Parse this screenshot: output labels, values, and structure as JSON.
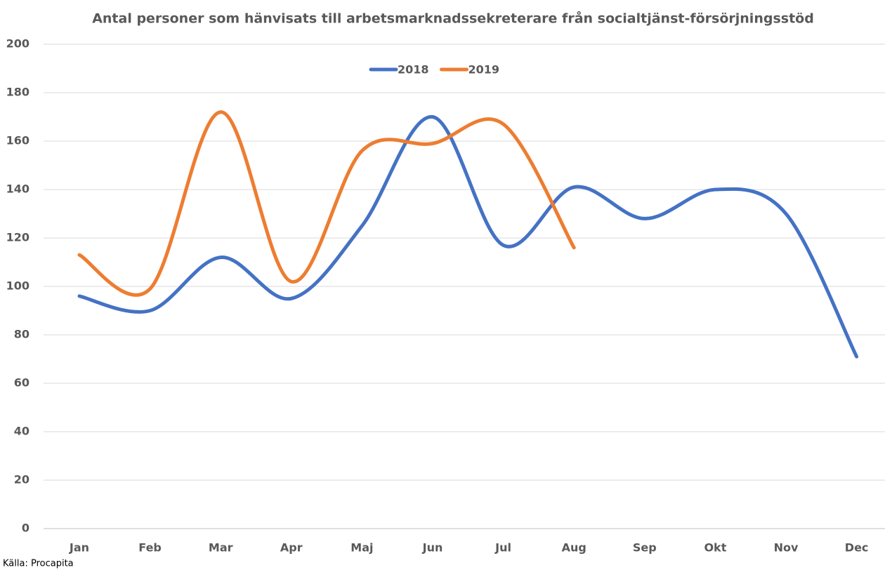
{
  "chart_data": {
    "type": "line",
    "title": "Antal personer som hänvisats till arbetsmarknadssekreterare från socialtjänst-försörjningsstöd",
    "categories": [
      "Jan",
      "Feb",
      "Mar",
      "Apr",
      "Maj",
      "Jun",
      "Jul",
      "Aug",
      "Sep",
      "Okt",
      "Nov",
      "Dec"
    ],
    "series": [
      {
        "name": "2018",
        "color": "#4472c4",
        "values": [
          96,
          90,
          112,
          95,
          125,
          170,
          117,
          141,
          128,
          140,
          130,
          71
        ]
      },
      {
        "name": "2019",
        "color": "#ed7d31",
        "values": [
          113,
          99,
          172,
          102,
          156,
          159,
          167,
          116,
          null,
          null,
          null,
          null
        ]
      }
    ],
    "ylim": [
      0,
      200
    ],
    "yticks": [
      0,
      20,
      40,
      60,
      80,
      100,
      120,
      140,
      160,
      180,
      200
    ],
    "grid": true,
    "smooth": true,
    "legend": "top",
    "source": "Källa: Procapita"
  }
}
